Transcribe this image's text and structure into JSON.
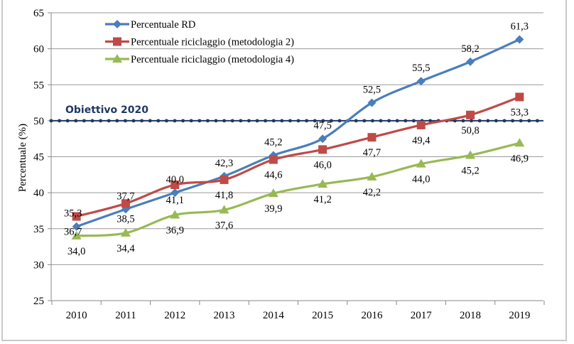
{
  "chart_data": {
    "type": "line",
    "title": "",
    "xlabel": "",
    "ylabel": "Percentuale (%)",
    "ylim": [
      25,
      65
    ],
    "yticks": [
      "25",
      "30",
      "35",
      "40",
      "45",
      "50",
      "55",
      "60",
      "65"
    ],
    "categories": [
      "2010",
      "2011",
      "2012",
      "2013",
      "2014",
      "2015",
      "2016",
      "2017",
      "2018",
      "2019"
    ],
    "grid": true,
    "legend": "top-left",
    "series": [
      {
        "name": "Percentuale RD",
        "color": "#4a7ebb",
        "marker": "diamond",
        "values": [
          35.3,
          37.7,
          40.0,
          42.3,
          45.2,
          47.5,
          52.5,
          55.5,
          58.2,
          61.3
        ],
        "labels": [
          "35,3",
          "37,7",
          "40,0",
          "42,3",
          "45,2",
          "47,5",
          "52,5",
          "55,5",
          "58,2",
          "61,3"
        ]
      },
      {
        "name": "Percentuale riciclaggio (metodologia 2)",
        "color": "#be4b48",
        "marker": "square",
        "values": [
          36.7,
          38.5,
          41.1,
          41.8,
          44.6,
          46.0,
          47.7,
          49.4,
          50.8,
          53.3
        ],
        "labels": [
          "36,7",
          "38,5",
          "41,1",
          "41,8",
          "44,6",
          "46,0",
          "47,7",
          "49,4",
          "50,8",
          "53,3"
        ]
      },
      {
        "name": "Percentuale riciclaggio (metodologia 4)",
        "color": "#98b954",
        "marker": "triangle",
        "values": [
          34.0,
          34.4,
          36.9,
          37.6,
          39.9,
          41.2,
          42.2,
          44.0,
          45.2,
          46.9
        ],
        "labels": [
          "34,0",
          "34,4",
          "36,9",
          "37,6",
          "39,9",
          "41,2",
          "42,2",
          "44,0",
          "45,2",
          "46,9"
        ]
      }
    ],
    "reference_line": {
      "label": "Obiettivo 2020",
      "value": 50,
      "color": "#1f3864"
    }
  }
}
